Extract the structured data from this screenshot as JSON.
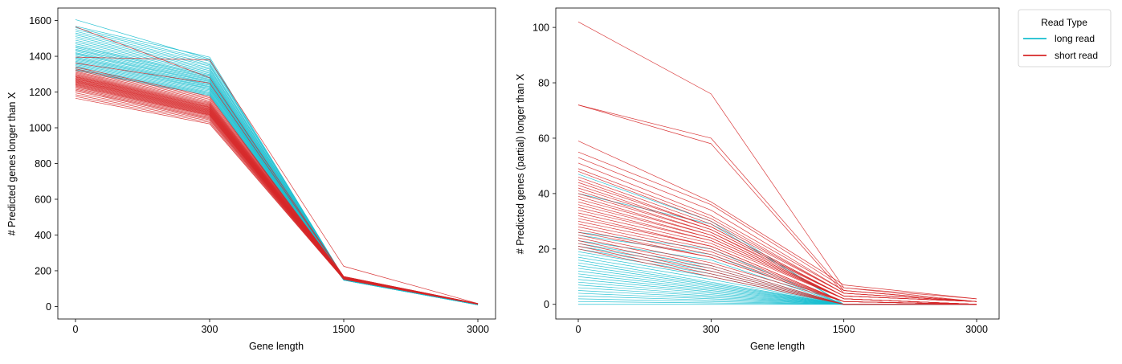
{
  "chart_data": [
    {
      "type": "line",
      "title": "",
      "xlabel": "Gene length",
      "ylabel": "# Predicted genes longer than X",
      "categories": [
        "0",
        "300",
        "1500",
        "3000"
      ],
      "yticks": [
        0,
        200,
        400,
        600,
        800,
        1000,
        1200,
        1400,
        1600
      ],
      "ylim": [
        -70,
        1670
      ],
      "grid": false,
      "series_groups": [
        {
          "name": "long read",
          "color": "#17becf",
          "series": [
            [
              1605,
              1385,
              160,
              13
            ],
            [
              1568,
              1395,
              162,
              14
            ],
            [
              1560,
              1380,
              161,
              13
            ],
            [
              1550,
              1372,
              160,
              13
            ],
            [
              1540,
              1360,
              159,
              12
            ],
            [
              1530,
              1352,
              158,
              12
            ],
            [
              1520,
              1345,
              158,
              12
            ],
            [
              1510,
              1335,
              157,
              12
            ],
            [
              1500,
              1328,
              157,
              12
            ],
            [
              1490,
              1320,
              156,
              11
            ],
            [
              1480,
              1312,
              156,
              11
            ],
            [
              1470,
              1305,
              155,
              11
            ],
            [
              1460,
              1298,
              155,
              11
            ],
            [
              1455,
              1292,
              154,
              11
            ],
            [
              1448,
              1288,
              154,
              11
            ],
            [
              1440,
              1282,
              153,
              11
            ],
            [
              1435,
              1278,
              153,
              11
            ],
            [
              1428,
              1272,
              153,
              10
            ],
            [
              1420,
              1268,
              152,
              10
            ],
            [
              1415,
              1262,
              152,
              10
            ],
            [
              1410,
              1258,
              152,
              10
            ],
            [
              1402,
              1252,
              151,
              10
            ],
            [
              1395,
              1248,
              151,
              10
            ],
            [
              1390,
              1242,
              151,
              10
            ],
            [
              1384,
              1238,
              150,
              10
            ],
            [
              1378,
              1232,
              150,
              10
            ],
            [
              1372,
              1228,
              150,
              10
            ],
            [
              1366,
              1222,
              149,
              10
            ],
            [
              1360,
              1218,
              149,
              10
            ],
            [
              1354,
              1212,
              149,
              10
            ],
            [
              1348,
              1206,
              148,
              9
            ],
            [
              1342,
              1200,
              148,
              9
            ],
            [
              1336,
              1195,
              148,
              9
            ],
            [
              1330,
              1190,
              147,
              9
            ],
            [
              1325,
              1185,
              147,
              9
            ],
            [
              1320,
              1180,
              147,
              9
            ]
          ]
        },
        {
          "name": "short read",
          "color": "#d62728",
          "series": [
            [
              1565,
              1280,
              168,
              16
            ],
            [
              1395,
              1380,
              225,
              17
            ],
            [
              1362,
              1250,
              168,
              16
            ],
            [
              1340,
              1175,
              167,
              16
            ],
            [
              1330,
              1168,
              166,
              16
            ],
            [
              1322,
              1160,
              166,
              16
            ],
            [
              1315,
              1152,
              165,
              16
            ],
            [
              1310,
              1145,
              165,
              15
            ],
            [
              1305,
              1140,
              165,
              15
            ],
            [
              1300,
              1135,
              164,
              15
            ],
            [
              1296,
              1130,
              164,
              15
            ],
            [
              1292,
              1126,
              163,
              15
            ],
            [
              1288,
              1122,
              163,
              15
            ],
            [
              1285,
              1118,
              163,
              15
            ],
            [
              1282,
              1115,
              162,
              15
            ],
            [
              1278,
              1112,
              162,
              15
            ],
            [
              1275,
              1108,
              162,
              15
            ],
            [
              1272,
              1105,
              161,
              15
            ],
            [
              1268,
              1102,
              161,
              15
            ],
            [
              1265,
              1099,
              161,
              15
            ],
            [
              1262,
              1096,
              160,
              15
            ],
            [
              1258,
              1093,
              160,
              15
            ],
            [
              1255,
              1090,
              160,
              15
            ],
            [
              1252,
              1087,
              159,
              14
            ],
            [
              1248,
              1084,
              159,
              14
            ],
            [
              1244,
              1081,
              158,
              14
            ],
            [
              1240,
              1078,
              158,
              14
            ],
            [
              1236,
              1075,
              158,
              14
            ],
            [
              1232,
              1072,
              157,
              14
            ],
            [
              1228,
              1069,
              157,
              14
            ],
            [
              1222,
              1065,
              156,
              14
            ],
            [
              1216,
              1060,
              156,
              14
            ],
            [
              1210,
              1055,
              155,
              14
            ],
            [
              1205,
              1050,
              155,
              14
            ],
            [
              1195,
              1045,
              154,
              14
            ],
            [
              1185,
              1038,
              154,
              13
            ],
            [
              1175,
              1030,
              153,
              13
            ],
            [
              1165,
              1022,
              152,
              13
            ]
          ]
        }
      ]
    },
    {
      "type": "line",
      "title": "",
      "xlabel": "Gene length",
      "ylabel": "# Predicted genes (partial) longer than X",
      "categories": [
        "0",
        "300",
        "1500",
        "3000"
      ],
      "yticks": [
        0,
        20,
        40,
        60,
        80,
        100
      ],
      "ylim": [
        -5.3,
        107
      ],
      "grid": false,
      "legend": {
        "title": "Read Type",
        "placement": "outside top-right",
        "entries": [
          "long read",
          "short read"
        ]
      },
      "series_groups": [
        {
          "name": "long read",
          "color": "#17becf",
          "series": [
            [
              0,
              0,
              0,
              0
            ],
            [
              1,
              0.5,
              0,
              0
            ],
            [
              2,
              1,
              0,
              0
            ],
            [
              3,
              1.5,
              0,
              0
            ],
            [
              4,
              2,
              0,
              0
            ],
            [
              5,
              2.5,
              0,
              0
            ],
            [
              6,
              3,
              0,
              0
            ],
            [
              7,
              3.5,
              0,
              0
            ],
            [
              8,
              4,
              0,
              0
            ],
            [
              9,
              4.5,
              0,
              0
            ],
            [
              10,
              5,
              0,
              0
            ],
            [
              11,
              5.5,
              0,
              0
            ],
            [
              12,
              6,
              0,
              0
            ],
            [
              13,
              6.5,
              0,
              0
            ],
            [
              14,
              7,
              0,
              0
            ],
            [
              15,
              7.5,
              0,
              0
            ],
            [
              16,
              8,
              0,
              0
            ],
            [
              17,
              9,
              0,
              0
            ],
            [
              18,
              10,
              0,
              0
            ],
            [
              19,
              11,
              0,
              0
            ],
            [
              20,
              12,
              0,
              0
            ],
            [
              21,
              13,
              0,
              0
            ],
            [
              22,
              14,
              0,
              0
            ],
            [
              23,
              16,
              0,
              0
            ],
            [
              25,
              18,
              0,
              0
            ],
            [
              26,
              20,
              0,
              0
            ],
            [
              40,
              29,
              0,
              0
            ],
            [
              47,
              30,
              0,
              0
            ]
          ]
        },
        {
          "name": "short read",
          "color": "#d62728",
          "series": [
            [
              102,
              76,
              6,
              1
            ],
            [
              72,
              60,
              5,
              1
            ],
            [
              72,
              58,
              4,
              1
            ],
            [
              59,
              37,
              7,
              2
            ],
            [
              55,
              36,
              6,
              2
            ],
            [
              53,
              34,
              5,
              1
            ],
            [
              51,
              32,
              5,
              1
            ],
            [
              49,
              31,
              4,
              1
            ],
            [
              48,
              30,
              4,
              1
            ],
            [
              46,
              29,
              4,
              1
            ],
            [
              45,
              28,
              3,
              1
            ],
            [
              44,
              28,
              3,
              1
            ],
            [
              43,
              27,
              3,
              1
            ],
            [
              42,
              27,
              3,
              1
            ],
            [
              41,
              26,
              3,
              1
            ],
            [
              40,
              26,
              2,
              0
            ],
            [
              39,
              25,
              2,
              0
            ],
            [
              38,
              25,
              2,
              0
            ],
            [
              37,
              24,
              2,
              0
            ],
            [
              36,
              24,
              2,
              0
            ],
            [
              35,
              23,
              2,
              0
            ],
            [
              34,
              23,
              2,
              0
            ],
            [
              33,
              22,
              2,
              0
            ],
            [
              32,
              21,
              1,
              0
            ],
            [
              31,
              21,
              1,
              0
            ],
            [
              30,
              20,
              1,
              0
            ],
            [
              29,
              19,
              1,
              0
            ],
            [
              28,
              18,
              1,
              0
            ],
            [
              27,
              17,
              1,
              0
            ],
            [
              26,
              17,
              1,
              0
            ],
            [
              25,
              15,
              1,
              0
            ],
            [
              24,
              14,
              0,
              0
            ],
            [
              23,
              13,
              0,
              0
            ],
            [
              22,
              12,
              0,
              0
            ],
            [
              21,
              11,
              0,
              0
            ],
            [
              20,
              10,
              0,
              0
            ]
          ]
        }
      ]
    }
  ]
}
